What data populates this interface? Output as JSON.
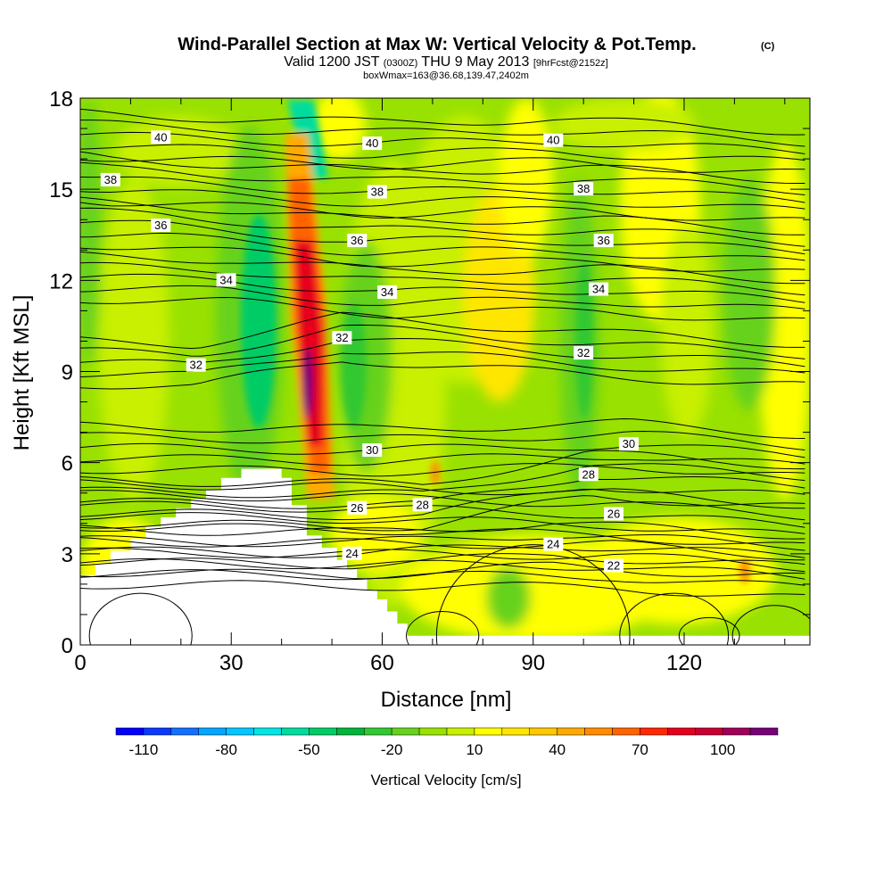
{
  "chart_data": {
    "type": "heatmap",
    "title": "Wind-Parallel Section at Max W: Vertical Velocity & Pot.Temp.",
    "title_mark": "(C)",
    "subtitle": {
      "prefix": "Valid 1200 JST",
      "utc": "(0300Z)",
      "date": "THU 9 May 2013",
      "fcst": "[9hrFcst@2152z]"
    },
    "subtitle2": "boxWmax=163@36.68,139.47,2402m",
    "xlabel": "Distance [nm]",
    "ylabel": "Height [Kft MSL]",
    "xlim": [
      0,
      145
    ],
    "ylim": [
      0,
      18
    ],
    "x_ticks": [
      "0",
      "30",
      "60",
      "90",
      "120"
    ],
    "x_tick_values": [
      0,
      30,
      60,
      90,
      120
    ],
    "y_ticks": [
      "0",
      "3",
      "6",
      "9",
      "12",
      "15",
      "18"
    ],
    "y_tick_values": [
      0,
      3,
      6,
      9,
      12,
      15,
      18
    ],
    "colorbar": {
      "label": "Vertical Velocity [cm/s]",
      "levels_from": -120,
      "level_step": 10,
      "colors": [
        "#0000ff",
        "#0a3aff",
        "#1170ff",
        "#00a6ff",
        "#00c8ff",
        "#00e6e6",
        "#00dca0",
        "#00cc66",
        "#00b43c",
        "#32c832",
        "#66d21e",
        "#99e100",
        "#c8f000",
        "#ffff00",
        "#ffe600",
        "#ffc800",
        "#ffaa00",
        "#ff8c00",
        "#ff6400",
        "#ff2800",
        "#e6001e",
        "#c80032",
        "#a0005a",
        "#780078"
      ],
      "tick_labels": [
        "-110",
        "-80",
        "-50",
        "-20",
        "10",
        "40",
        "70",
        "100"
      ],
      "tick_values": [
        -110,
        -80,
        -50,
        -20,
        10,
        40,
        70,
        100
      ]
    },
    "potential_temperature_labels": [
      {
        "text": "40",
        "x": 16,
        "y": 16.7
      },
      {
        "text": "40",
        "x": 58,
        "y": 16.5
      },
      {
        "text": "40",
        "x": 94,
        "y": 16.6
      },
      {
        "text": "38",
        "x": 6,
        "y": 15.3
      },
      {
        "text": "38",
        "x": 59,
        "y": 14.9
      },
      {
        "text": "38",
        "x": 100,
        "y": 15.0
      },
      {
        "text": "36",
        "x": 16,
        "y": 13.8
      },
      {
        "text": "36",
        "x": 55,
        "y": 13.3
      },
      {
        "text": "36",
        "x": 104,
        "y": 13.3
      },
      {
        "text": "34",
        "x": 29,
        "y": 12.0
      },
      {
        "text": "34",
        "x": 61,
        "y": 11.6
      },
      {
        "text": "34",
        "x": 103,
        "y": 11.7
      },
      {
        "text": "32",
        "x": 23,
        "y": 9.2
      },
      {
        "text": "32",
        "x": 52,
        "y": 10.1
      },
      {
        "text": "32",
        "x": 100,
        "y": 9.6
      },
      {
        "text": "30",
        "x": 58,
        "y": 6.4
      },
      {
        "text": "30",
        "x": 109,
        "y": 6.6
      },
      {
        "text": "28",
        "x": 68,
        "y": 4.6
      },
      {
        "text": "28",
        "x": 101,
        "y": 5.6
      },
      {
        "text": "26",
        "x": 55,
        "y": 4.5
      },
      {
        "text": "26",
        "x": 106,
        "y": 4.3
      },
      {
        "text": "24",
        "x": 54,
        "y": 3.0
      },
      {
        "text": "24",
        "x": 94,
        "y": 3.3
      },
      {
        "text": "22",
        "x": 106,
        "y": 2.6
      }
    ],
    "terrain_profile": [
      {
        "x": 0,
        "y": 2.3
      },
      {
        "x": 3,
        "y": 2.7
      },
      {
        "x": 6,
        "y": 3.1
      },
      {
        "x": 10,
        "y": 3.5
      },
      {
        "x": 13,
        "y": 3.9
      },
      {
        "x": 16,
        "y": 4.2
      },
      {
        "x": 19,
        "y": 4.5
      },
      {
        "x": 22,
        "y": 4.8
      },
      {
        "x": 25,
        "y": 5.1
      },
      {
        "x": 28,
        "y": 5.5
      },
      {
        "x": 32,
        "y": 5.8
      },
      {
        "x": 38,
        "y": 5.8
      },
      {
        "x": 40,
        "y": 5.5
      },
      {
        "x": 42,
        "y": 4.6
      },
      {
        "x": 45,
        "y": 3.6
      },
      {
        "x": 47,
        "y": 3.6
      },
      {
        "x": 48,
        "y": 3.2
      },
      {
        "x": 51,
        "y": 2.8
      },
      {
        "x": 53,
        "y": 2.5
      },
      {
        "x": 55,
        "y": 2.2
      },
      {
        "x": 57,
        "y": 1.8
      },
      {
        "x": 59,
        "y": 1.5
      },
      {
        "x": 61,
        "y": 1.1
      },
      {
        "x": 63,
        "y": 0.7
      },
      {
        "x": 65,
        "y": 0.3
      },
      {
        "x": 145,
        "y": 0.3
      }
    ]
  }
}
